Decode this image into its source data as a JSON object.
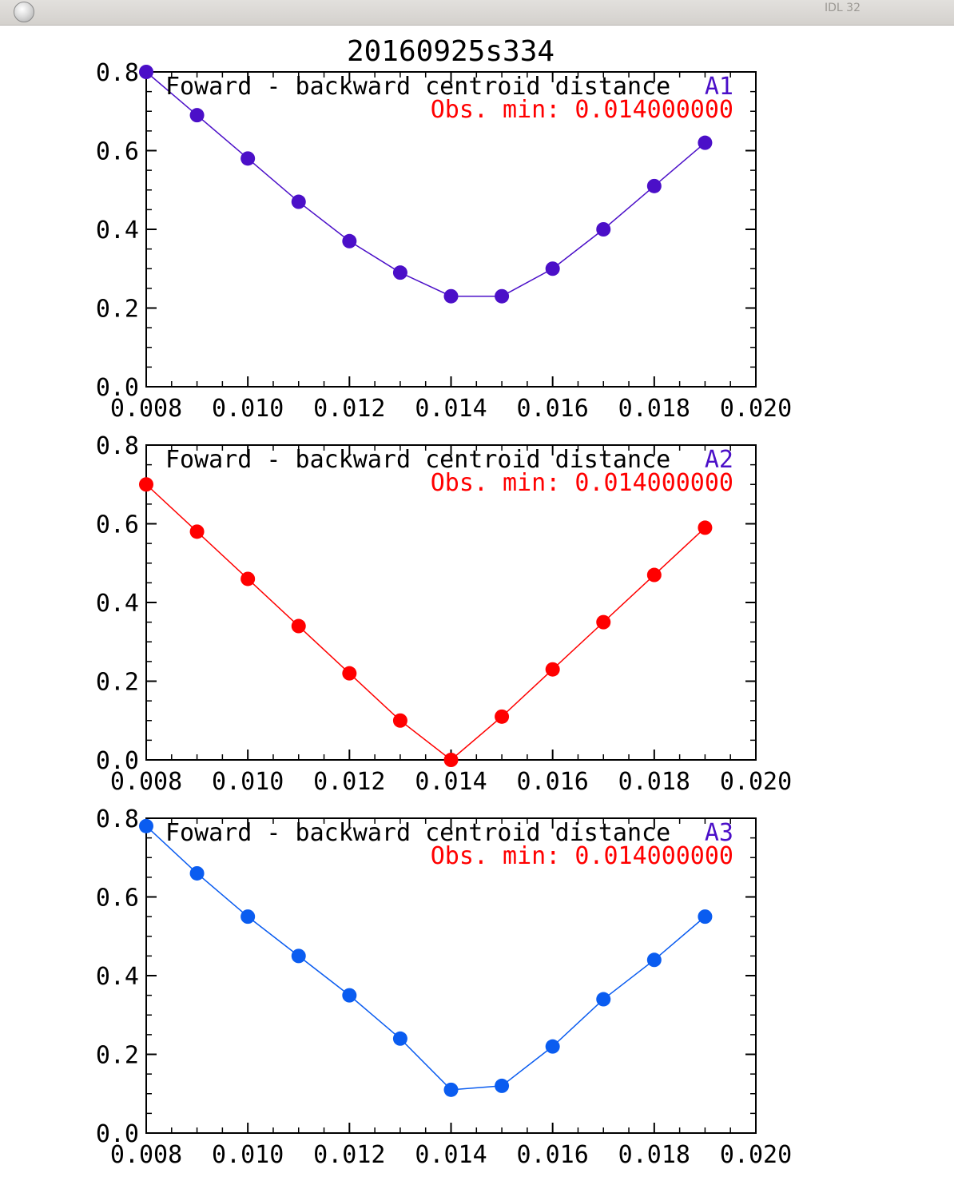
{
  "window": {
    "title": "IDL 32",
    "button_icon": "window-close-circle-icon"
  },
  "figure_title": "20160925s334",
  "chart_data": [
    {
      "type": "line",
      "name": "A1",
      "title": "Foward - backward centroid distance",
      "series_label": "A1",
      "annotation": "Obs. min: 0.014000000",
      "color": "#4b0fc8",
      "annotation_color": "#ff0000",
      "label_color": "#000000",
      "marker": "filled-circle",
      "x": [
        0.008,
        0.009,
        0.01,
        0.011,
        0.012,
        0.013,
        0.014,
        0.015,
        0.016,
        0.017,
        0.018,
        0.019
      ],
      "y": [
        0.8,
        0.69,
        0.58,
        0.47,
        0.37,
        0.29,
        0.23,
        0.23,
        0.3,
        0.4,
        0.51,
        0.62
      ],
      "xlim": [
        0.008,
        0.02
      ],
      "ylim": [
        0.0,
        0.8
      ],
      "xticks": [
        "0.008",
        "0.010",
        "0.012",
        "0.014",
        "0.016",
        "0.018",
        "0.020"
      ],
      "yticks": [
        "0.0",
        "0.2",
        "0.4",
        "0.6",
        "0.8"
      ],
      "xlabel": "",
      "ylabel": ""
    },
    {
      "type": "line",
      "name": "A2",
      "title": "Foward - backward centroid distance",
      "series_label": "A2",
      "annotation": "Obs. min: 0.014000000",
      "color": "#ff0000",
      "annotation_color": "#ff0000",
      "label_color": "#000000",
      "marker": "filled-circle",
      "x": [
        0.008,
        0.009,
        0.01,
        0.011,
        0.012,
        0.013,
        0.014,
        0.015,
        0.016,
        0.017,
        0.018,
        0.019
      ],
      "y": [
        0.7,
        0.58,
        0.46,
        0.34,
        0.22,
        0.1,
        0.0,
        0.11,
        0.23,
        0.35,
        0.47,
        0.59
      ],
      "xlim": [
        0.008,
        0.02
      ],
      "ylim": [
        0.0,
        0.8
      ],
      "xticks": [
        "0.008",
        "0.010",
        "0.012",
        "0.014",
        "0.016",
        "0.018",
        "0.020"
      ],
      "yticks": [
        "0.0",
        "0.2",
        "0.4",
        "0.6",
        "0.8"
      ],
      "xlabel": "",
      "ylabel": ""
    },
    {
      "type": "line",
      "name": "A3",
      "title": "Foward - backward centroid distance",
      "series_label": "A3",
      "annotation": "Obs. min: 0.014000000",
      "color": "#0a5cf0",
      "annotation_color": "#ff0000",
      "label_color": "#000000",
      "marker": "filled-circle",
      "x": [
        0.008,
        0.009,
        0.01,
        0.011,
        0.012,
        0.013,
        0.014,
        0.015,
        0.016,
        0.017,
        0.018,
        0.019
      ],
      "y": [
        0.78,
        0.66,
        0.55,
        0.45,
        0.35,
        0.24,
        0.11,
        0.12,
        0.22,
        0.34,
        0.44,
        0.55
      ],
      "xlim": [
        0.008,
        0.02
      ],
      "ylim": [
        0.0,
        0.8
      ],
      "xticks": [
        "0.008",
        "0.010",
        "0.012",
        "0.014",
        "0.016",
        "0.018",
        "0.020"
      ],
      "yticks": [
        "0.0",
        "0.2",
        "0.4",
        "0.6",
        "0.8"
      ],
      "xlabel": "",
      "ylabel": ""
    }
  ]
}
